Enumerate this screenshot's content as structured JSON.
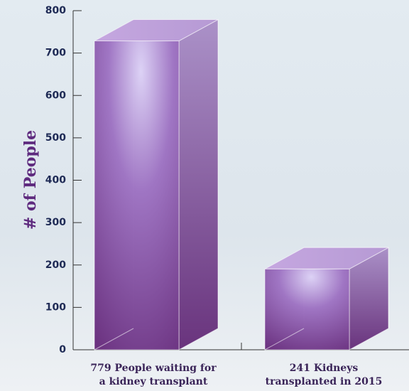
{
  "chart_data": {
    "type": "bar3d",
    "ylabel": "# of People",
    "categories": [
      [
        "779 People waiting for",
        "a kidney transplant"
      ],
      [
        "241 Kidneys",
        "transplanted in 2015"
      ]
    ],
    "values": [
      779,
      241
    ],
    "color": "#6a2a86",
    "ylim": [
      0,
      800
    ],
    "yticks": [
      0,
      100,
      200,
      300,
      400,
      500,
      600,
      700,
      800
    ]
  }
}
